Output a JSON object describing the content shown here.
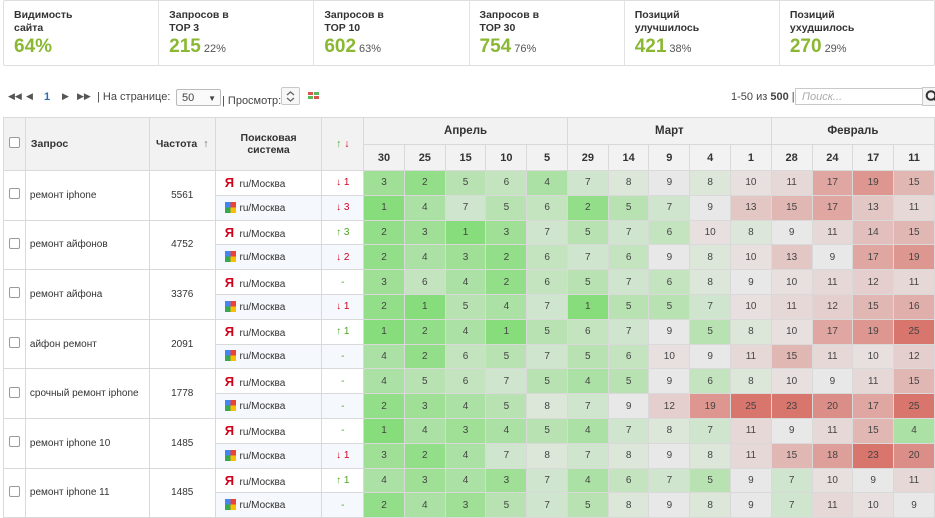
{
  "stats": [
    {
      "label": "Видимость\nсайта",
      "value": "64%",
      "pct": ""
    },
    {
      "label": "Запросов в\nTOP 3",
      "value": "215",
      "pct": "22%"
    },
    {
      "label": "Запросов в\nTOP 10",
      "value": "602",
      "pct": "63%"
    },
    {
      "label": "Запросов в\nTOP 30",
      "value": "754",
      "pct": "76%"
    },
    {
      "label": "Позиций\nулучшилось",
      "value": "421",
      "pct": "38%"
    },
    {
      "label": "Позиций\nухудшилось",
      "value": "270",
      "pct": "29%"
    }
  ],
  "toolbar": {
    "first": "◀◀",
    "prev": "◀",
    "page": "1",
    "next": "▶",
    "last": "▶▶",
    "per_page_label": "| На странице:",
    "per_page_value": "50",
    "view_label": "| Просмотр:",
    "range_prefix": "1-50 из",
    "range_total": "500",
    "range_sep": "|",
    "search_placeholder": "Поиск..."
  },
  "table": {
    "col_query": "Запрос",
    "col_freq": "Частота",
    "col_freq_sort": "↑",
    "col_system": "Поисковая\nсистема",
    "col_change_up": "↑",
    "col_change_down": "↓",
    "months": [
      "Апрель",
      "Март",
      "Февраль"
    ],
    "dates": [
      "30",
      "25",
      "15",
      "10",
      "5",
      "29",
      "14",
      "9",
      "4",
      "1",
      "28",
      "24",
      "17",
      "11"
    ],
    "region": "ru/Москва",
    "yandex_glyph": "Я",
    "rows": [
      {
        "query": "ремонт iphone",
        "freq": "5561",
        "y": {
          "chg": "↓ 1",
          "dir": "down",
          "pos": [
            3,
            2,
            5,
            6,
            4,
            7,
            8,
            9,
            8,
            10,
            11,
            17,
            19,
            15
          ]
        },
        "g": {
          "chg": "↓ 3",
          "dir": "down",
          "pos": [
            1,
            4,
            7,
            5,
            6,
            2,
            5,
            7,
            9,
            13,
            15,
            17,
            13,
            11
          ]
        }
      },
      {
        "query": "ремонт айфонов",
        "freq": "4752",
        "y": {
          "chg": "↑ 3",
          "dir": "up",
          "pos": [
            2,
            3,
            1,
            3,
            7,
            5,
            7,
            6,
            10,
            8,
            9,
            11,
            14,
            15
          ]
        },
        "g": {
          "chg": "↓ 2",
          "dir": "down",
          "pos": [
            2,
            4,
            3,
            2,
            6,
            7,
            6,
            9,
            8,
            10,
            13,
            9,
            17,
            19
          ]
        }
      },
      {
        "query": "ремонт айфона",
        "freq": "3376",
        "y": {
          "chg": "-",
          "dir": "none",
          "pos": [
            3,
            6,
            4,
            2,
            6,
            5,
            7,
            6,
            8,
            9,
            10,
            11,
            12,
            11
          ]
        },
        "g": {
          "chg": "↓ 1",
          "dir": "down",
          "pos": [
            2,
            1,
            5,
            4,
            7,
            1,
            5,
            5,
            7,
            10,
            11,
            12,
            15,
            16
          ]
        }
      },
      {
        "query": "айфон ремонт",
        "freq": "2091",
        "y": {
          "chg": "↑ 1",
          "dir": "up",
          "pos": [
            1,
            2,
            4,
            1,
            5,
            6,
            7,
            9,
            5,
            8,
            10,
            17,
            19,
            25
          ]
        },
        "g": {
          "chg": "-",
          "dir": "none",
          "pos": [
            4,
            2,
            6,
            5,
            7,
            5,
            6,
            10,
            9,
            11,
            15,
            11,
            10,
            12
          ]
        }
      },
      {
        "query": "срочный ремонт iphone",
        "freq": "1778",
        "y": {
          "chg": "-",
          "dir": "none",
          "pos": [
            4,
            5,
            6,
            7,
            5,
            4,
            5,
            9,
            6,
            8,
            10,
            9,
            11,
            15
          ]
        },
        "g": {
          "chg": "-",
          "dir": "none",
          "pos": [
            2,
            3,
            4,
            5,
            8,
            7,
            9,
            12,
            19,
            25,
            23,
            20,
            17,
            25
          ]
        }
      },
      {
        "query": "ремонт iphone 10",
        "freq": "1485",
        "y": {
          "chg": "-",
          "dir": "none",
          "pos": [
            1,
            4,
            3,
            4,
            5,
            4,
            7,
            8,
            7,
            11,
            9,
            11,
            15,
            4
          ]
        },
        "g": {
          "chg": "↓ 1",
          "dir": "down",
          "pos": [
            3,
            2,
            4,
            7,
            8,
            7,
            8,
            9,
            8,
            11,
            15,
            18,
            23,
            20
          ]
        }
      },
      {
        "query": "ремонт iphone 11",
        "freq": "1485",
        "y": {
          "chg": "↑ 1",
          "dir": "up",
          "pos": [
            4,
            3,
            4,
            3,
            7,
            4,
            6,
            7,
            5,
            9,
            7,
            10,
            9,
            11
          ]
        },
        "g": {
          "chg": "-",
          "dir": "none",
          "pos": [
            2,
            4,
            3,
            5,
            7,
            5,
            8,
            9,
            8,
            9,
            7,
            11,
            10,
            9
          ]
        }
      }
    ]
  },
  "colors": {
    "accent": "#8ab833",
    "up": "#4aa41f",
    "down": "#d0021b",
    "heat_best": "#87dc7b",
    "heat_mid": "#e8e8e8",
    "heat_worst": "#d8756d"
  }
}
